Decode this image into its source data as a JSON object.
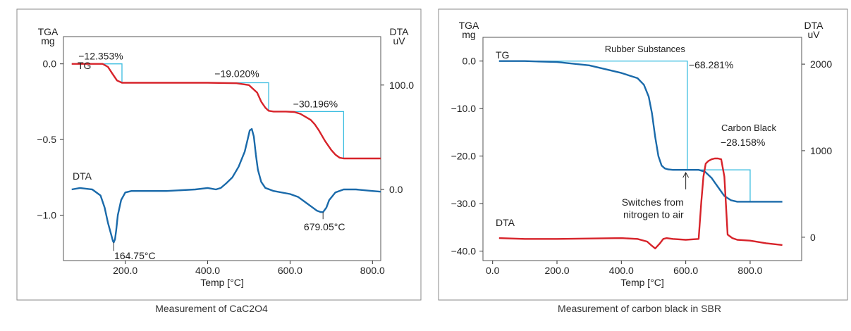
{
  "chart_data": [
    {
      "type": "line",
      "caption": "Measurement of CaC2O4",
      "xlabel": "Temp [°C]",
      "ylabel_left": [
        "TGA",
        "mg"
      ],
      "ylabel_right": [
        "DTA",
        "uV"
      ],
      "xlim": [
        50,
        820
      ],
      "x_ticks": [
        "200.0",
        "400.0",
        "600.0",
        "800.0"
      ],
      "x_tick_values": [
        200,
        400,
        600,
        800
      ],
      "ylim_left": [
        -1.3,
        0.18
      ],
      "y_left_ticks": [
        "0.0",
        "−0.5",
        "−1.0"
      ],
      "y_left_tick_values": [
        0.0,
        -0.5,
        -1.0
      ],
      "y_right_ticks": [
        "100.0",
        "0.0"
      ],
      "y_right_tick_values_on_left_scale": [
        -0.14,
        -0.83
      ],
      "series": [
        {
          "name": "TG",
          "color": "#d7232a",
          "x": [
            70,
            145,
            158,
            170,
            180,
            192,
            240,
            320,
            400,
            470,
            500,
            520,
            530,
            540,
            548,
            560,
            590,
            610,
            625,
            650,
            660,
            670,
            685,
            700,
            710,
            720,
            730,
            820
          ],
          "y": [
            0.0,
            0.0,
            -0.02,
            -0.07,
            -0.11,
            -0.125,
            -0.125,
            -0.125,
            -0.125,
            -0.128,
            -0.14,
            -0.19,
            -0.25,
            -0.29,
            -0.31,
            -0.315,
            -0.315,
            -0.318,
            -0.33,
            -0.37,
            -0.4,
            -0.44,
            -0.51,
            -0.57,
            -0.6,
            -0.62,
            -0.625,
            -0.625
          ]
        },
        {
          "name": "DTA",
          "color": "#1a6aaa",
          "x": [
            70,
            90,
            120,
            140,
            150,
            158,
            165,
            170,
            172,
            175,
            178,
            182,
            190,
            200,
            215,
            240,
            300,
            370,
            400,
            410,
            420,
            432,
            445,
            460,
            475,
            490,
            497,
            502,
            507,
            512,
            517,
            522,
            530,
            540,
            560,
            600,
            620,
            640,
            655,
            665,
            675,
            680,
            688,
            695,
            710,
            730,
            760,
            800,
            820
          ],
          "y": [
            -0.83,
            -0.82,
            -0.83,
            -0.87,
            -0.95,
            -1.05,
            -1.12,
            -1.17,
            -1.18,
            -1.16,
            -1.1,
            -1.0,
            -0.9,
            -0.85,
            -0.84,
            -0.84,
            -0.84,
            -0.83,
            -0.82,
            -0.825,
            -0.83,
            -0.82,
            -0.79,
            -0.75,
            -0.68,
            -0.58,
            -0.5,
            -0.44,
            -0.43,
            -0.48,
            -0.6,
            -0.7,
            -0.78,
            -0.82,
            -0.84,
            -0.86,
            -0.88,
            -0.92,
            -0.95,
            -0.97,
            -0.98,
            -0.98,
            -0.95,
            -0.9,
            -0.85,
            -0.83,
            -0.83,
            -0.84,
            -0.845
          ]
        }
      ],
      "step_color": "#3bbde0",
      "steps": [
        {
          "x_start": 145,
          "x_end": 192,
          "y_from": 0.0,
          "y_to": -0.125,
          "label": "−12.353%"
        },
        {
          "x_start": 400,
          "x_end": 548,
          "y_from": -0.125,
          "y_to": -0.315,
          "label": "−19.020%"
        },
        {
          "x_start": 600,
          "x_end": 730,
          "y_from": -0.315,
          "y_to": -0.625,
          "label": "−30.196%"
        }
      ],
      "annotations": [
        {
          "text": "164.75°C",
          "x": 172,
          "y": -1.18
        },
        {
          "text": "679.05°C",
          "x": 680,
          "y": -0.98
        }
      ]
    },
    {
      "type": "line",
      "caption": "Measurement of carbon black in SBR",
      "xlabel": "Temp [°C]",
      "ylabel_left": [
        "TGA",
        "mg"
      ],
      "ylabel_right": [
        "DTA",
        "uV"
      ],
      "xlim": [
        -30,
        960
      ],
      "x_ticks": [
        "0.0",
        "200.0",
        "400.0",
        "600.0",
        "800.0"
      ],
      "x_tick_values": [
        0,
        200,
        400,
        600,
        800
      ],
      "ylim_left": [
        -42,
        5
      ],
      "y_left_ticks": [
        "0.0",
        "−10.0",
        "−20.0",
        "−30.0",
        "−40.0"
      ],
      "y_left_tick_values": [
        0,
        -10,
        -20,
        -30,
        -40
      ],
      "y_right_ticks": [
        "2000",
        "1000",
        "0"
      ],
      "y_right_tick_values": [
        2000,
        1000,
        0
      ],
      "ylim_right": [
        -270,
        2310
      ],
      "series": [
        {
          "name": "TG",
          "axis": "left",
          "color": "#1a6aaa",
          "x": [
            20,
            100,
            200,
            300,
            350,
            400,
            450,
            470,
            485,
            495,
            505,
            515,
            525,
            535,
            545,
            560,
            600,
            640,
            660,
            680,
            700,
            720,
            740,
            760,
            800,
            900
          ],
          "y": [
            0.0,
            0.0,
            -0.2,
            -0.9,
            -1.7,
            -2.5,
            -3.6,
            -5.0,
            -7.5,
            -11.0,
            -16.0,
            -20.0,
            -22.0,
            -22.6,
            -22.8,
            -22.9,
            -22.9,
            -22.9,
            -23.3,
            -24.6,
            -26.5,
            -28.4,
            -29.3,
            -29.6,
            -29.6,
            -29.6
          ]
        },
        {
          "name": "DTA",
          "axis": "right",
          "color": "#d7232a",
          "x": [
            20,
            100,
            200,
            300,
            400,
            450,
            480,
            495,
            505,
            520,
            530,
            540,
            560,
            600,
            640,
            648,
            655,
            662,
            670,
            680,
            690,
            700,
            710,
            720,
            730,
            745,
            760,
            800,
            850,
            900
          ],
          "y": [
            -10,
            -20,
            -20,
            -15,
            -10,
            -20,
            -50,
            -100,
            -130,
            -70,
            -20,
            -10,
            -20,
            -30,
            -20,
            400,
            700,
            850,
            880,
            900,
            910,
            910,
            900,
            700,
            30,
            -10,
            -30,
            -40,
            -70,
            -90
          ]
        }
      ],
      "step_color": "#3bbde0",
      "steps": [
        {
          "x_start": 20,
          "x_end": 605,
          "y_from": 0.0,
          "y_to": -22.9
        },
        {
          "x_start": 605,
          "x_end": 800,
          "y_from": -22.9,
          "y_to": -29.6
        }
      ],
      "annotations": [
        {
          "text": "Rubber Substances",
          "x": 605,
          "y": 2.2
        },
        {
          "text": "−68.281%",
          "x": 605,
          "y": -1.2
        },
        {
          "text": "Carbon Black",
          "x": 800,
          "y": -14.7
        },
        {
          "text": "−28.158%",
          "x": 800,
          "y": -17.8
        },
        {
          "text": "Switches from",
          "x": 600,
          "y": -30.3
        },
        {
          "text": "nitrogen to air",
          "x": 600,
          "y": -32.9
        }
      ]
    }
  ],
  "labels": {
    "tg": "TG",
    "dta": "DTA"
  }
}
